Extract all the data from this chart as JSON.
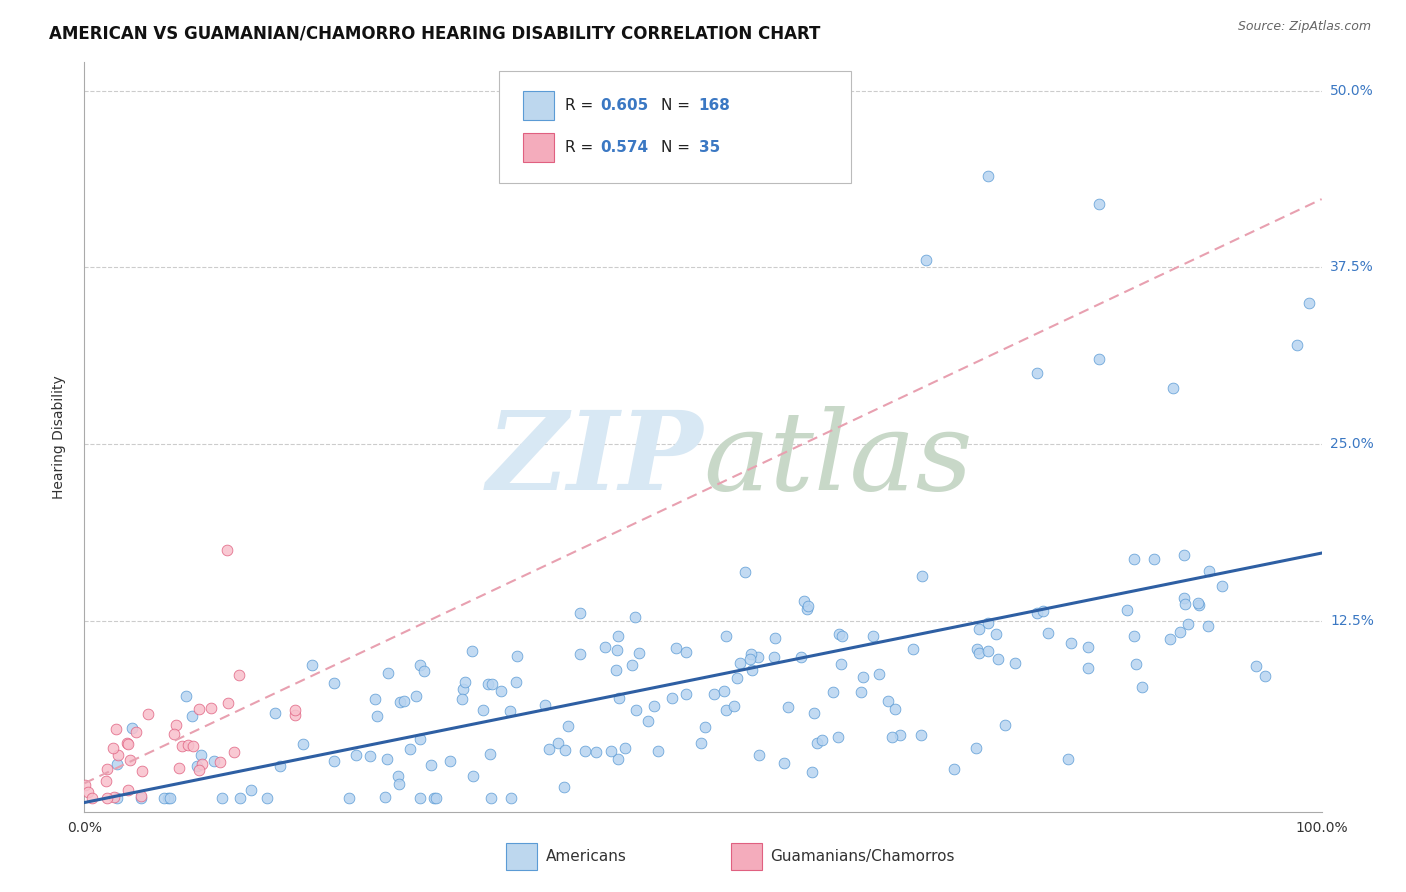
{
  "title": "AMERICAN VS GUAMANIAN/CHAMORRO HEARING DISABILITY CORRELATION CHART",
  "source": "Source: ZipAtlas.com",
  "ylabel": "Hearing Disability",
  "r_american": 0.605,
  "n_american": 168,
  "r_guamanian": 0.574,
  "n_guamanian": 35,
  "color_american_fill": "#B8D4F0",
  "color_american_edge": "#5B9BD5",
  "color_guamanian_fill": "#F8C0CC",
  "color_guamanian_edge": "#E06080",
  "color_american_line": "#2E5FA3",
  "color_guamanian_line": "#D05070",
  "color_guamanian_dashed": "#E8A0B0",
  "legend_box_color_american": "#BDD7EE",
  "legend_box_color_guamanian": "#F4ACBC",
  "watermark_color": "#D8E8F4",
  "watermark_color2": "#C8D8C8",
  "background_color": "#FFFFFF",
  "grid_color": "#CCCCCC",
  "title_fontsize": 12,
  "axis_label_fontsize": 10,
  "tick_fontsize": 10,
  "xlim": [
    0.0,
    1.0
  ],
  "ylim": [
    -0.01,
    0.52
  ],
  "ytick_values": [
    0.0,
    0.125,
    0.25,
    0.375,
    0.5
  ],
  "ytick_labels": [
    "",
    "12.5%",
    "25.0%",
    "37.5%",
    "50.0%"
  ]
}
